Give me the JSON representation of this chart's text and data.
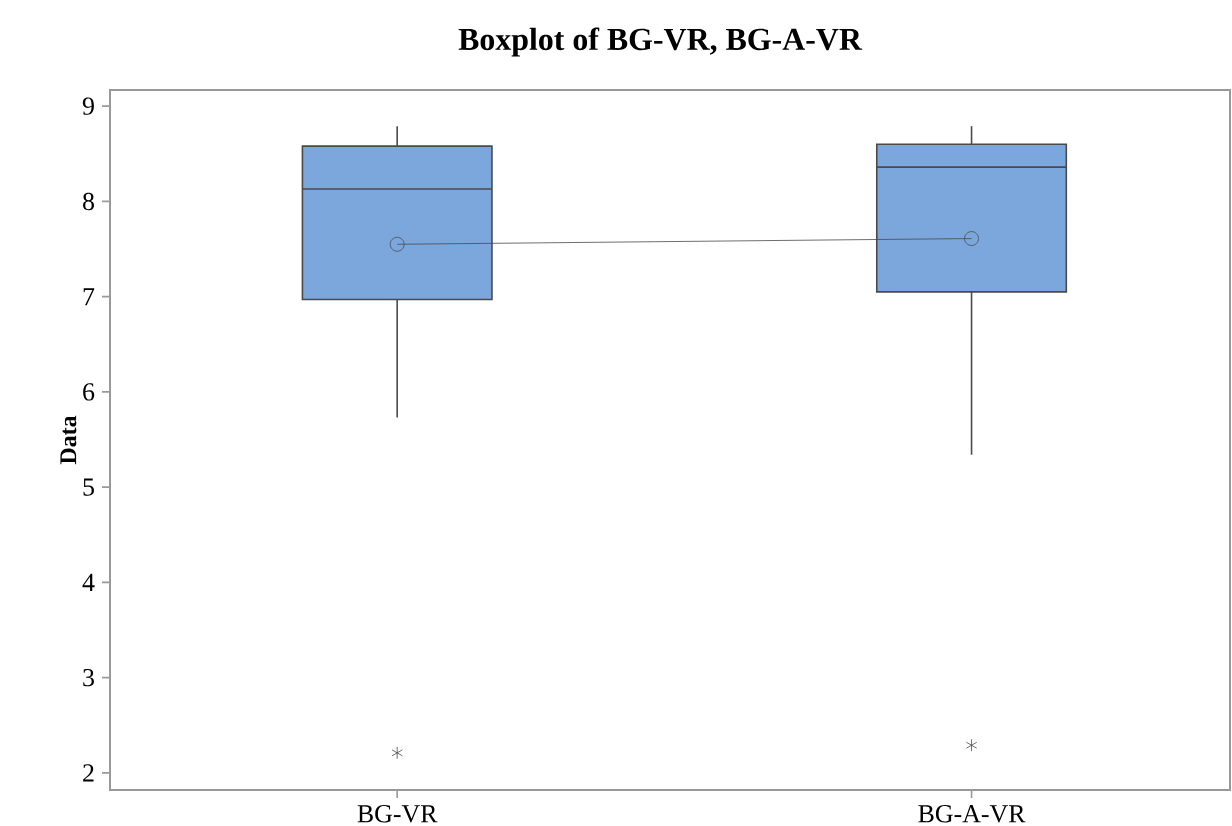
{
  "chart_data": {
    "type": "box",
    "title": "Boxplot of BG-VR, BG-A-VR",
    "ylabel": "Data",
    "categories": [
      "BG-VR",
      "BG-A-VR"
    ],
    "boxes": [
      {
        "low": 5.73,
        "q1": 6.97,
        "median": 8.13,
        "q3": 8.58,
        "high": 8.79,
        "outliers": [
          2.21
        ]
      },
      {
        "low": 5.34,
        "q1": 7.05,
        "median": 8.36,
        "q3": 8.6,
        "high": 8.79,
        "outliers": [
          2.29
        ]
      }
    ],
    "series": [
      {
        "type": "line",
        "color": "#4a4a4a",
        "marker": "circle",
        "values": [
          7.55,
          7.61
        ]
      }
    ],
    "color": "#7ba7dc",
    "ylim": [
      1.82,
      9.17
    ],
    "yticks": [
      2,
      3,
      4,
      5,
      6,
      7,
      8,
      9
    ]
  }
}
